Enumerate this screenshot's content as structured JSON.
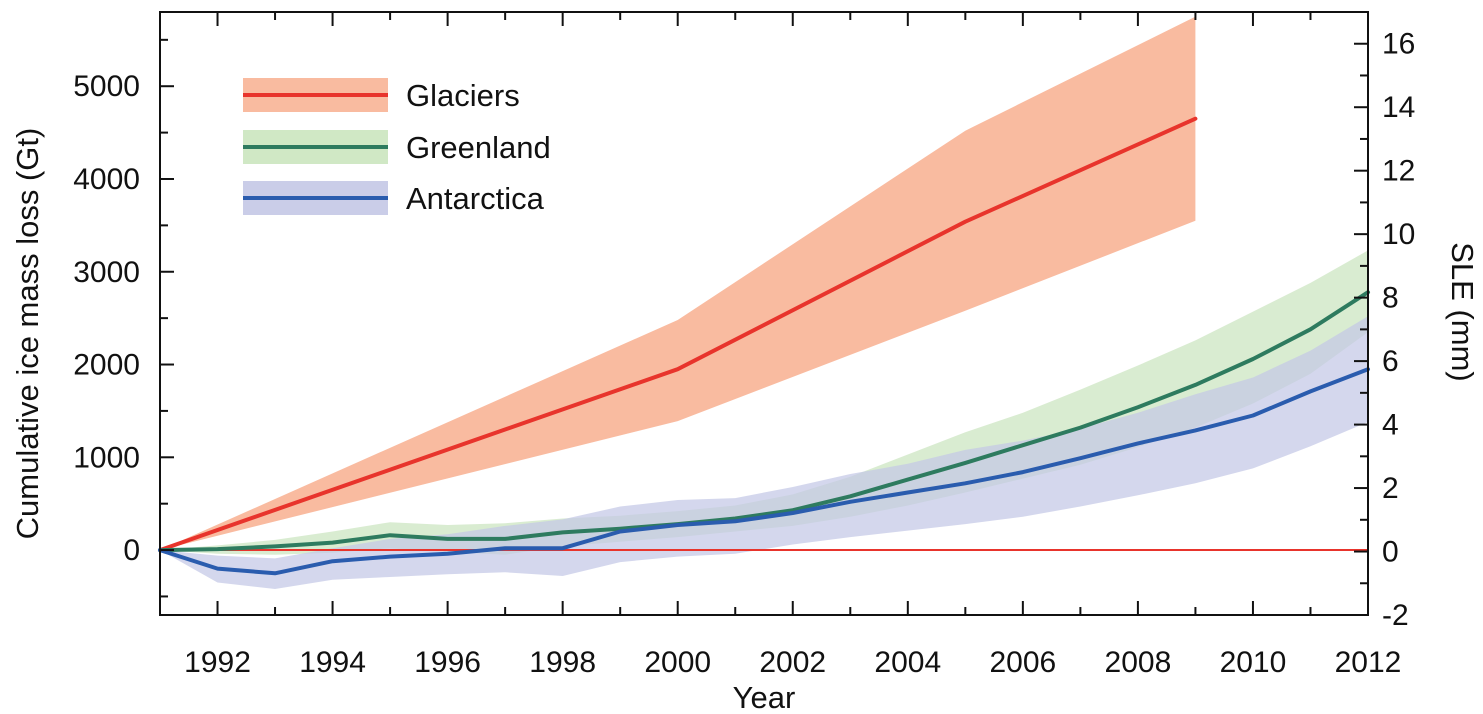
{
  "chart_data": {
    "type": "line",
    "title": "",
    "xlabel": "Year",
    "ylabel": "Cumulative ice mass loss (Gt)",
    "y2label": "SLE (mm)",
    "xlim": [
      1991,
      2012
    ],
    "ylim": [
      -700,
      5800
    ],
    "y2lim": [
      -2,
      17
    ],
    "x_ticks": [
      1992,
      1994,
      1996,
      1998,
      2000,
      2002,
      2004,
      2006,
      2008,
      2010,
      2012
    ],
    "y_ticks": [
      0,
      1000,
      2000,
      3000,
      4000,
      5000
    ],
    "y2_ticks": [
      -2,
      0,
      2,
      4,
      6,
      8,
      10,
      12,
      14,
      16
    ],
    "grid": false,
    "legend_position": "top-left",
    "zero_line_color": "#e8342c",
    "series": [
      {
        "name": "Glaciers",
        "color": "#e8342c",
        "band_color": "#f9bba0",
        "x": [
          1991,
          2000,
          2005,
          2009
        ],
        "y": [
          0,
          1950,
          3540,
          4650
        ],
        "lower": [
          0,
          1390,
          2580,
          3550
        ],
        "upper": [
          0,
          2480,
          4520,
          5750
        ]
      },
      {
        "name": "Greenland",
        "color": "#2e7b5f",
        "band_color": "#cbe5bf",
        "x": [
          1991,
          1992,
          1993,
          1994,
          1995,
          1996,
          1997,
          1998,
          1999,
          2000,
          2001,
          2002,
          2003,
          2004,
          2005,
          2006,
          2007,
          2008,
          2009,
          2010,
          2011,
          2012
        ],
        "y": [
          0,
          10,
          40,
          80,
          160,
          120,
          120,
          190,
          230,
          280,
          340,
          430,
          580,
          760,
          940,
          1130,
          1320,
          1540,
          1780,
          2060,
          2380,
          2780
        ],
        "lower": [
          0,
          -40,
          -50,
          -30,
          20,
          -20,
          -50,
          40,
          90,
          140,
          200,
          260,
          360,
          480,
          620,
          770,
          920,
          1110,
          1320,
          1580,
          1900,
          2350
        ],
        "upper": [
          0,
          50,
          110,
          200,
          300,
          270,
          290,
          340,
          370,
          420,
          480,
          600,
          790,
          1030,
          1270,
          1480,
          1730,
          1990,
          2260,
          2570,
          2880,
          3230
        ]
      },
      {
        "name": "Antarctica",
        "color": "#2a5cae",
        "band_color": "#c4c8e6",
        "x": [
          1991,
          1992,
          1993,
          1994,
          1995,
          1996,
          1997,
          1998,
          1999,
          2000,
          2001,
          2002,
          2003,
          2004,
          2005,
          2006,
          2007,
          2008,
          2009,
          2010,
          2011,
          2012
        ],
        "y": [
          0,
          -200,
          -250,
          -120,
          -70,
          -40,
          20,
          20,
          200,
          270,
          310,
          400,
          520,
          620,
          720,
          840,
          990,
          1150,
          1290,
          1450,
          1710,
          1950
        ],
        "lower": [
          0,
          -350,
          -420,
          -320,
          -290,
          -260,
          -240,
          -280,
          -130,
          -70,
          -40,
          60,
          140,
          210,
          280,
          360,
          470,
          590,
          720,
          880,
          1120,
          1380
        ],
        "upper": [
          0,
          -60,
          -90,
          20,
          120,
          170,
          260,
          330,
          470,
          540,
          560,
          680,
          820,
          930,
          1080,
          1180,
          1310,
          1480,
          1680,
          1860,
          2150,
          2520
        ]
      }
    ]
  }
}
